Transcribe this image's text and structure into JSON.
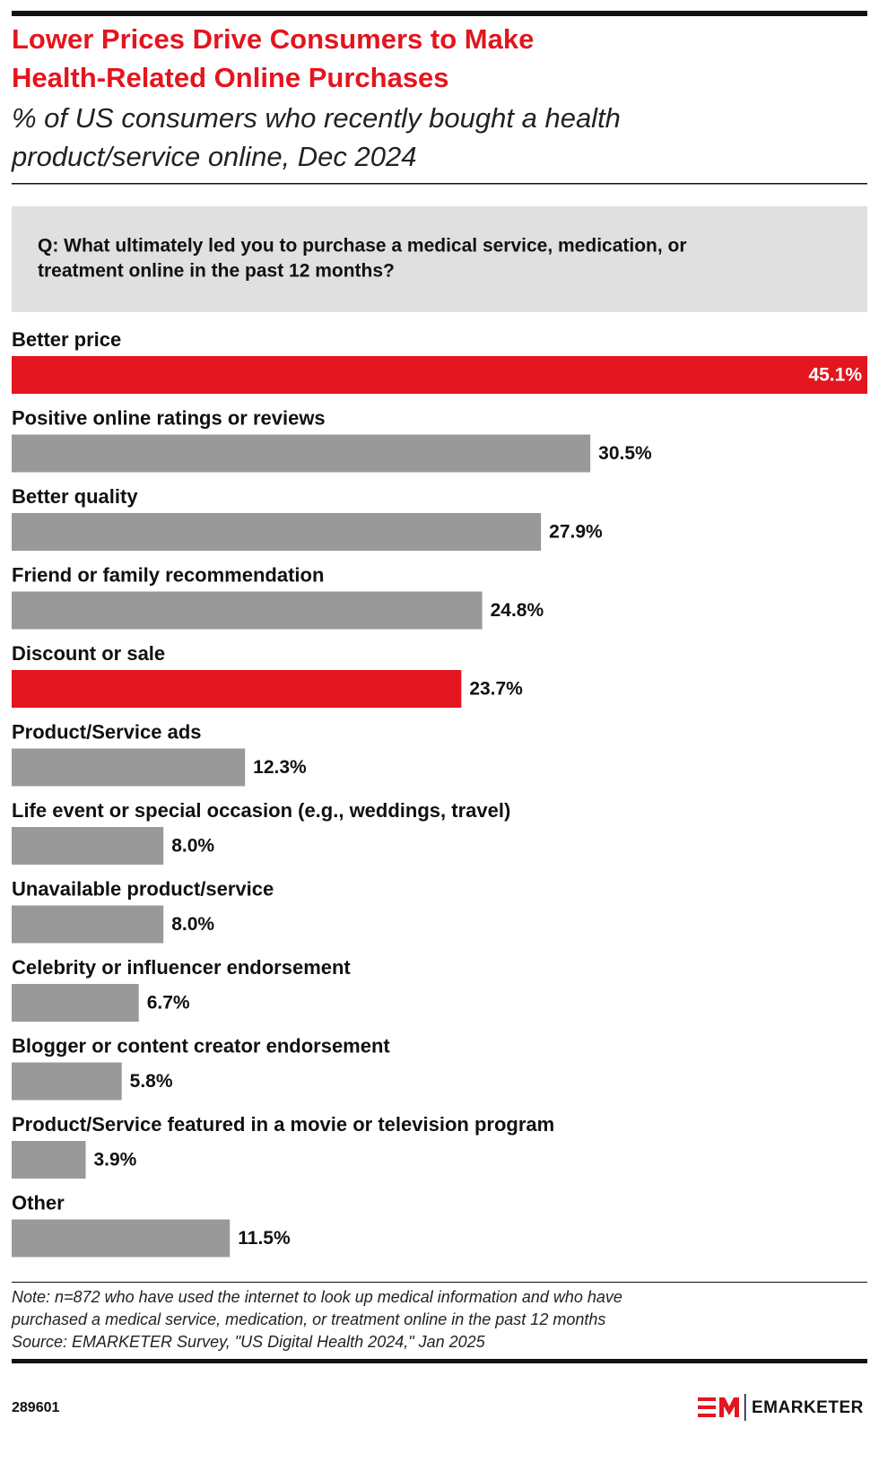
{
  "chart_data": {
    "type": "bar",
    "orientation": "horizontal",
    "title": [
      "Lower Prices Drive Consumers to Make",
      "Health-Related Online Purchases"
    ],
    "subtitle": [
      "% of US consumers who recently bought a health",
      "product/service online, Dec 2024"
    ],
    "question": [
      "Q: What ultimately led you to purchase a medical service, medication, or",
      "treatment online in the past 12 months?"
    ],
    "categories": [
      "Better price",
      "Positive online ratings or reviews",
      "Better quality",
      "Friend or family recommendation",
      "Discount or sale",
      "Product/Service ads",
      "Life event or special occasion (e.g., weddings, travel)",
      "Unavailable product/service",
      "Celebrity or influencer endorsement",
      "Blogger or content creator endorsement",
      "Product/Service featured in a movie or television program",
      "Other"
    ],
    "values": [
      45.1,
      30.5,
      27.9,
      24.8,
      23.7,
      12.3,
      8.0,
      8.0,
      6.7,
      5.8,
      3.9,
      11.5
    ],
    "value_labels": [
      "45.1%",
      "30.5%",
      "27.9%",
      "24.8%",
      "23.7%",
      "12.3%",
      "8.0%",
      "8.0%",
      "6.7%",
      "5.8%",
      "3.9%",
      "11.5%"
    ],
    "colors": [
      "#e3151e",
      "#999999",
      "#999999",
      "#999999",
      "#e3151e",
      "#999999",
      "#999999",
      "#999999",
      "#999999",
      "#999999",
      "#999999",
      "#999999"
    ],
    "note": [
      "Note: n=872 who have used the internet to look up medical information and who have",
      "purchased a medical service, medication, or treatment online in the past 12 months",
      "Source: EMARKETER Survey, \"US Digital Health 2024,\" Jan 2025"
    ],
    "chart_id": "289601",
    "brand": "EMARKETER"
  }
}
